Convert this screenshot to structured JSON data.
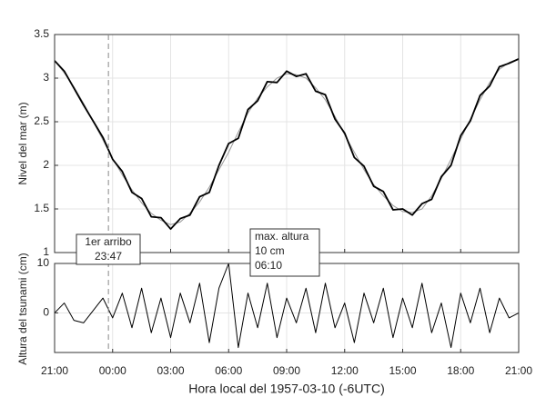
{
  "chart_data": [
    {
      "type": "line",
      "ylabel": "Nivel del mar (m)",
      "x": [
        0,
        0.5,
        1,
        1.5,
        2,
        2.5,
        3,
        3.5,
        4,
        4.5,
        5,
        5.5,
        6,
        6.5,
        7,
        7.5,
        8,
        8.5,
        9,
        9.5,
        10,
        10.5,
        11,
        11.5,
        12,
        12.5,
        13,
        13.5,
        14,
        14.5,
        15,
        15.5,
        16,
        16.5,
        17,
        17.5,
        18,
        18.5,
        19,
        19.5,
        20,
        20.5,
        21,
        21.5,
        22,
        22.5,
        23,
        23.5,
        24
      ],
      "series": [
        {
          "color": "#999999",
          "values": [
            3.2,
            3.06,
            2.9,
            2.71,
            2.5,
            2.29,
            2.08,
            1.89,
            1.72,
            1.57,
            1.45,
            1.37,
            1.32,
            1.35,
            1.45,
            1.58,
            1.75,
            1.95,
            2.15,
            2.38,
            2.6,
            2.77,
            2.9,
            3.0,
            3.05,
            3.04,
            3.0,
            2.89,
            2.75,
            2.56,
            2.35,
            2.15,
            1.95,
            1.78,
            1.65,
            1.54,
            1.47,
            1.46,
            1.5,
            1.65,
            1.85,
            2.07,
            2.3,
            2.53,
            2.75,
            2.95,
            3.1,
            3.18,
            3.22
          ]
        },
        {
          "color": "#000000",
          "values": [
            3.2,
            3.08,
            2.885,
            2.69,
            2.505,
            2.32,
            2.07,
            1.93,
            1.69,
            1.62,
            1.41,
            1.4,
            1.27,
            1.39,
            1.43,
            1.64,
            1.69,
            2.0,
            2.25,
            2.31,
            2.64,
            2.74,
            2.96,
            2.95,
            3.08,
            3.02,
            3.05,
            2.85,
            2.81,
            2.53,
            2.37,
            2.09,
            1.99,
            1.76,
            1.7,
            1.49,
            1.5,
            1.43,
            1.56,
            1.61,
            1.87,
            2.0,
            2.34,
            2.51,
            2.8,
            2.91,
            3.13,
            3.17,
            3.22
          ]
        }
      ],
      "xlim": [
        0,
        24
      ],
      "xticks": [
        0,
        3,
        6,
        9,
        12,
        15,
        18,
        21,
        24
      ],
      "ylim": [
        1,
        3.5
      ],
      "yticks": [
        1,
        1.5,
        2,
        2.5,
        3,
        3.5
      ],
      "grid": true
    },
    {
      "type": "line",
      "ylabel": "Altura del tsunami (cm)",
      "xlabel": "Hora local del 1957-03-10 (-6UTC)",
      "x": [
        0,
        0.5,
        1,
        1.5,
        2,
        2.5,
        3,
        3.5,
        4,
        4.5,
        5,
        5.5,
        6,
        6.5,
        7,
        7.5,
        8,
        8.5,
        9,
        9.5,
        10,
        10.5,
        11,
        11.5,
        12,
        12.5,
        13,
        13.5,
        14,
        14.5,
        15,
        15.5,
        16,
        16.5,
        17,
        17.5,
        18,
        18.5,
        19,
        19.5,
        20,
        20.5,
        21,
        21.5,
        22,
        22.5,
        23,
        23.5,
        24
      ],
      "series": [
        {
          "color": "#000000",
          "values": [
            0,
            2,
            -1.5,
            -2,
            0.5,
            3,
            -1,
            4,
            -3,
            5,
            -4,
            3,
            -5,
            4,
            -2,
            6,
            -6,
            5,
            10,
            -7,
            4,
            -3,
            6,
            -5,
            3,
            -2,
            5,
            -4,
            6,
            -3,
            2,
            -6,
            4,
            -2,
            5,
            -5,
            3,
            -3,
            6,
            -4,
            2,
            -7,
            4,
            -2,
            5,
            -4,
            3,
            -1,
            0
          ]
        }
      ],
      "xlim": [
        0,
        24
      ],
      "xticks": [
        {
          "value": 0,
          "label": "21:00"
        },
        {
          "value": 3,
          "label": "00:00"
        },
        {
          "value": 6,
          "label": "03:00"
        },
        {
          "value": 9,
          "label": "06:00"
        },
        {
          "value": 12,
          "label": "09:00"
        },
        {
          "value": 15,
          "label": "12:00"
        },
        {
          "value": 18,
          "label": "15:00"
        },
        {
          "value": 21,
          "label": "18:00"
        },
        {
          "value": 24,
          "label": "21:00"
        }
      ],
      "ylim": [
        -8,
        10
      ],
      "yticks": [
        0,
        10
      ],
      "grid": true,
      "first_arrival": 2.783,
      "annotations": [
        {
          "lines": [
            "1er arribo",
            "23:47"
          ]
        },
        {
          "lines": [
            "max. altura",
            "10 cm",
            "06:10"
          ]
        }
      ]
    }
  ]
}
